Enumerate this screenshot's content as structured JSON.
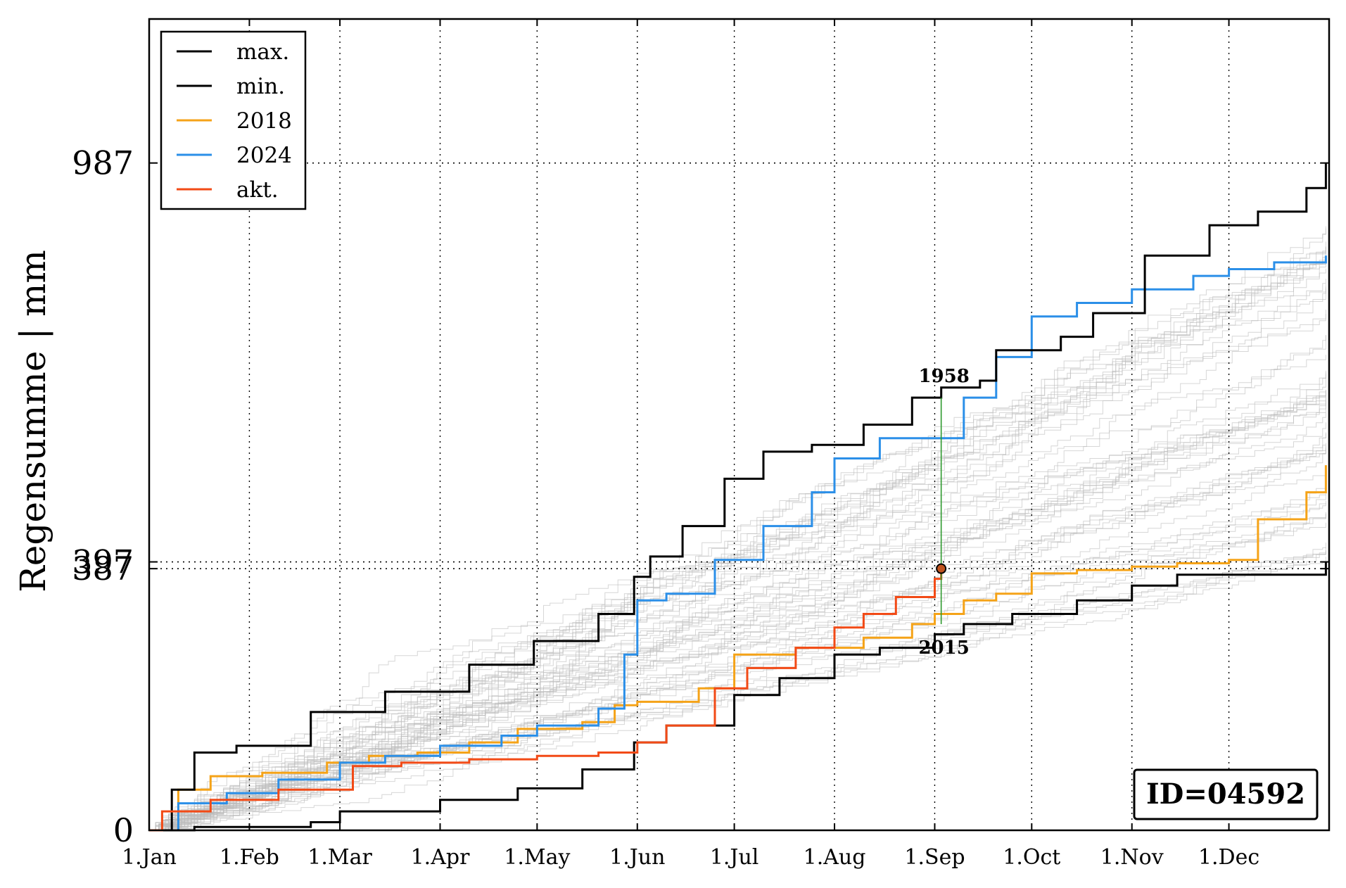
{
  "chart_data": {
    "type": "line",
    "title": "",
    "xlabel": "",
    "ylabel": "Regensumme | mm",
    "x_domain": [
      "01-01",
      "12-31"
    ],
    "ylim": [
      0,
      1200
    ],
    "yticks": [
      0,
      387,
      397,
      987
    ],
    "xticks": [
      {
        "label": "1.Jan",
        "date": "01-01"
      },
      {
        "label": "1.Feb",
        "date": "02-01"
      },
      {
        "label": "1.Mar",
        "date": "03-01"
      },
      {
        "label": "1.Apr",
        "date": "04-01"
      },
      {
        "label": "1.May",
        "date": "05-01"
      },
      {
        "label": "1.Jun",
        "date": "06-01"
      },
      {
        "label": "1.Jul",
        "date": "07-01"
      },
      {
        "label": "1.Aug",
        "date": "08-01"
      },
      {
        "label": "1.Sep",
        "date": "09-01"
      },
      {
        "label": "1.Oct",
        "date": "10-01"
      },
      {
        "label": "1.Nov",
        "date": "11-01"
      },
      {
        "label": "1.Dec",
        "date": "12-01"
      }
    ],
    "grid": true,
    "legend_position": "top-left",
    "series": [
      {
        "name": "max.",
        "color": "#000000",
        "style": "step",
        "x": [
          "01-01",
          "01-08",
          "01-15",
          "01-28",
          "02-20",
          "03-15",
          "04-10",
          "04-30",
          "05-20",
          "05-31",
          "06-05",
          "06-15",
          "06-28",
          "07-10",
          "07-25",
          "08-10",
          "08-25",
          "09-03",
          "09-15",
          "09-20",
          "10-10",
          "10-20",
          "11-05",
          "11-25",
          "12-10",
          "12-25",
          "12-31"
        ],
        "y": [
          0,
          60,
          115,
          125,
          175,
          205,
          245,
          280,
          320,
          375,
          405,
          450,
          520,
          560,
          570,
          600,
          640,
          655,
          665,
          710,
          730,
          765,
          850,
          895,
          915,
          950,
          987
        ]
      },
      {
        "name": "min.",
        "color": "#000000",
        "style": "step",
        "x": [
          "01-01",
          "01-15",
          "02-20",
          "03-01",
          "04-01",
          "04-25",
          "05-15",
          "05-31",
          "06-10",
          "07-01",
          "07-15",
          "08-01",
          "08-15",
          "09-01",
          "09-10",
          "09-25",
          "10-15",
          "11-01",
          "11-15",
          "12-31"
        ],
        "y": [
          0,
          5,
          12,
          28,
          45,
          62,
          90,
          130,
          155,
          200,
          225,
          260,
          270,
          290,
          305,
          320,
          340,
          362,
          378,
          397
        ]
      },
      {
        "name": "2018",
        "color": "#f5a318",
        "style": "step",
        "x": [
          "01-01",
          "01-10",
          "01-20",
          "02-05",
          "02-25",
          "03-10",
          "03-25",
          "04-10",
          "04-25",
          "05-15",
          "05-25",
          "06-01",
          "06-10",
          "06-20",
          "07-01",
          "07-20",
          "08-10",
          "08-25",
          "09-01",
          "09-10",
          "09-20",
          "10-01",
          "10-15",
          "11-01",
          "11-15",
          "12-01",
          "12-10",
          "12-25",
          "12-31"
        ],
        "y": [
          0,
          60,
          80,
          85,
          100,
          110,
          115,
          130,
          150,
          160,
          185,
          190,
          190,
          210,
          260,
          270,
          285,
          305,
          320,
          340,
          350,
          380,
          385,
          390,
          395,
          400,
          460,
          500,
          540
        ]
      },
      {
        "name": "2024",
        "color": "#2b8fe8",
        "style": "step",
        "x": [
          "01-01",
          "01-10",
          "01-25",
          "02-10",
          "03-01",
          "03-15",
          "04-01",
          "04-20",
          "05-01",
          "05-20",
          "05-28",
          "06-01",
          "06-10",
          "06-25",
          "07-10",
          "07-25",
          "08-01",
          "08-15",
          "09-01",
          "09-10",
          "09-20",
          "10-01",
          "10-15",
          "11-01",
          "11-20",
          "12-01",
          "12-15",
          "12-31"
        ],
        "y": [
          0,
          40,
          55,
          75,
          100,
          110,
          125,
          140,
          155,
          180,
          260,
          340,
          350,
          400,
          450,
          500,
          550,
          580,
          580,
          640,
          700,
          760,
          780,
          800,
          820,
          830,
          840,
          850
        ]
      },
      {
        "name": "akt.",
        "color": "#f24a16",
        "style": "step",
        "x": [
          "01-01",
          "01-05",
          "01-20",
          "02-10",
          "03-05",
          "03-20",
          "04-10",
          "05-01",
          "05-20",
          "06-01",
          "06-10",
          "06-25",
          "07-05",
          "07-20",
          "08-01",
          "08-10",
          "08-20",
          "09-01",
          "09-03"
        ],
        "y": [
          0,
          28,
          45,
          60,
          95,
          100,
          105,
          110,
          115,
          130,
          155,
          210,
          240,
          270,
          300,
          320,
          345,
          372,
          387
        ]
      }
    ],
    "background_series": {
      "name": "",
      "color": "#bcbcbc",
      "style": "step",
      "count": 60,
      "final_range": [
        400,
        900
      ]
    },
    "annotations": [
      {
        "text": "1958",
        "x": "09-03",
        "y": 640,
        "position": "above"
      },
      {
        "text": "2015",
        "x": "09-03",
        "y": 305,
        "position": "below"
      }
    ],
    "marker": {
      "x": "09-03",
      "y": 387,
      "fill": "#c0531e"
    },
    "vline": {
      "x": "09-03",
      "from": 305,
      "to": 640,
      "color": "#2e9a2e"
    },
    "hlines": [
      987,
      397,
      387
    ],
    "id_box": {
      "text": "ID=04592"
    }
  }
}
